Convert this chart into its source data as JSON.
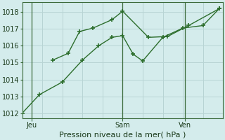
{
  "xlabel": "Pression niveau de la mer( hPa )",
  "background_color": "#d4ecec",
  "grid_color": "#b8d4d4",
  "line_color": "#2d6e2d",
  "vline_color": "#3a6a3a",
  "ylim": [
    1011.7,
    1018.6
  ],
  "xlim": [
    0,
    10.5
  ],
  "yticks": [
    1012,
    1013,
    1014,
    1015,
    1016,
    1017,
    1018
  ],
  "xtick_positions": [
    0.5,
    5.25,
    8.5
  ],
  "xtick_labels": [
    "Jeu",
    "Sam",
    "Ven"
  ],
  "vlines": [
    0.5,
    5.25,
    8.5
  ],
  "grid_vlines": [
    0,
    1.05,
    2.1,
    3.15,
    4.2,
    5.25,
    6.3,
    7.35,
    8.4,
    9.45,
    10.5
  ],
  "line1_x": [
    0.0,
    0.9,
    2.1,
    3.15,
    4.0,
    4.7,
    5.25,
    5.8,
    6.3,
    7.35,
    8.4,
    9.45,
    10.3
  ],
  "line1_y": [
    1012.0,
    1013.1,
    1013.85,
    1015.15,
    1016.0,
    1016.5,
    1016.6,
    1015.5,
    1015.1,
    1016.5,
    1017.05,
    1017.2,
    1018.2
  ],
  "line2_x": [
    1.6,
    2.4,
    3.0,
    3.7,
    4.7,
    5.25,
    6.6,
    7.6,
    8.7,
    10.3
  ],
  "line2_y": [
    1015.15,
    1015.55,
    1016.85,
    1017.05,
    1017.55,
    1018.05,
    1016.5,
    1016.55,
    1017.2,
    1018.2
  ],
  "markersize": 4,
  "linewidth": 1.0,
  "tick_fontsize": 7,
  "xlabel_fontsize": 8
}
